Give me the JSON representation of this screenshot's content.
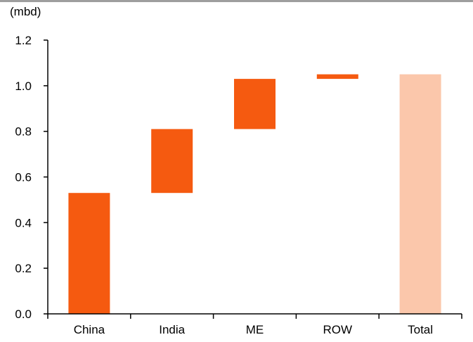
{
  "chart_data": {
    "type": "bar",
    "subtype": "waterfall",
    "unit_label": "(mbd)",
    "categories": [
      "China",
      "India",
      "ME",
      "ROW",
      "Total"
    ],
    "series": [
      {
        "increments": [
          0.53,
          0.28,
          0.22,
          0.02,
          null
        ],
        "starts": [
          0.0,
          0.53,
          0.81,
          1.03,
          0.0
        ],
        "ends": [
          0.53,
          0.81,
          1.03,
          1.05,
          1.05
        ]
      }
    ],
    "ylim": [
      0,
      1.2
    ],
    "yticks": [
      0.0,
      0.2,
      0.4,
      0.6,
      0.8,
      1.0,
      1.2
    ],
    "ytick_labels": [
      "0.0",
      "0.2",
      "0.4",
      "0.6",
      "0.8",
      "1.0",
      "1.2"
    ],
    "grid": false,
    "colors": {
      "increment": "#f55a10",
      "total": "#fbc7ab",
      "axis": "#000000",
      "top_rule": "#9e9e9e"
    }
  }
}
